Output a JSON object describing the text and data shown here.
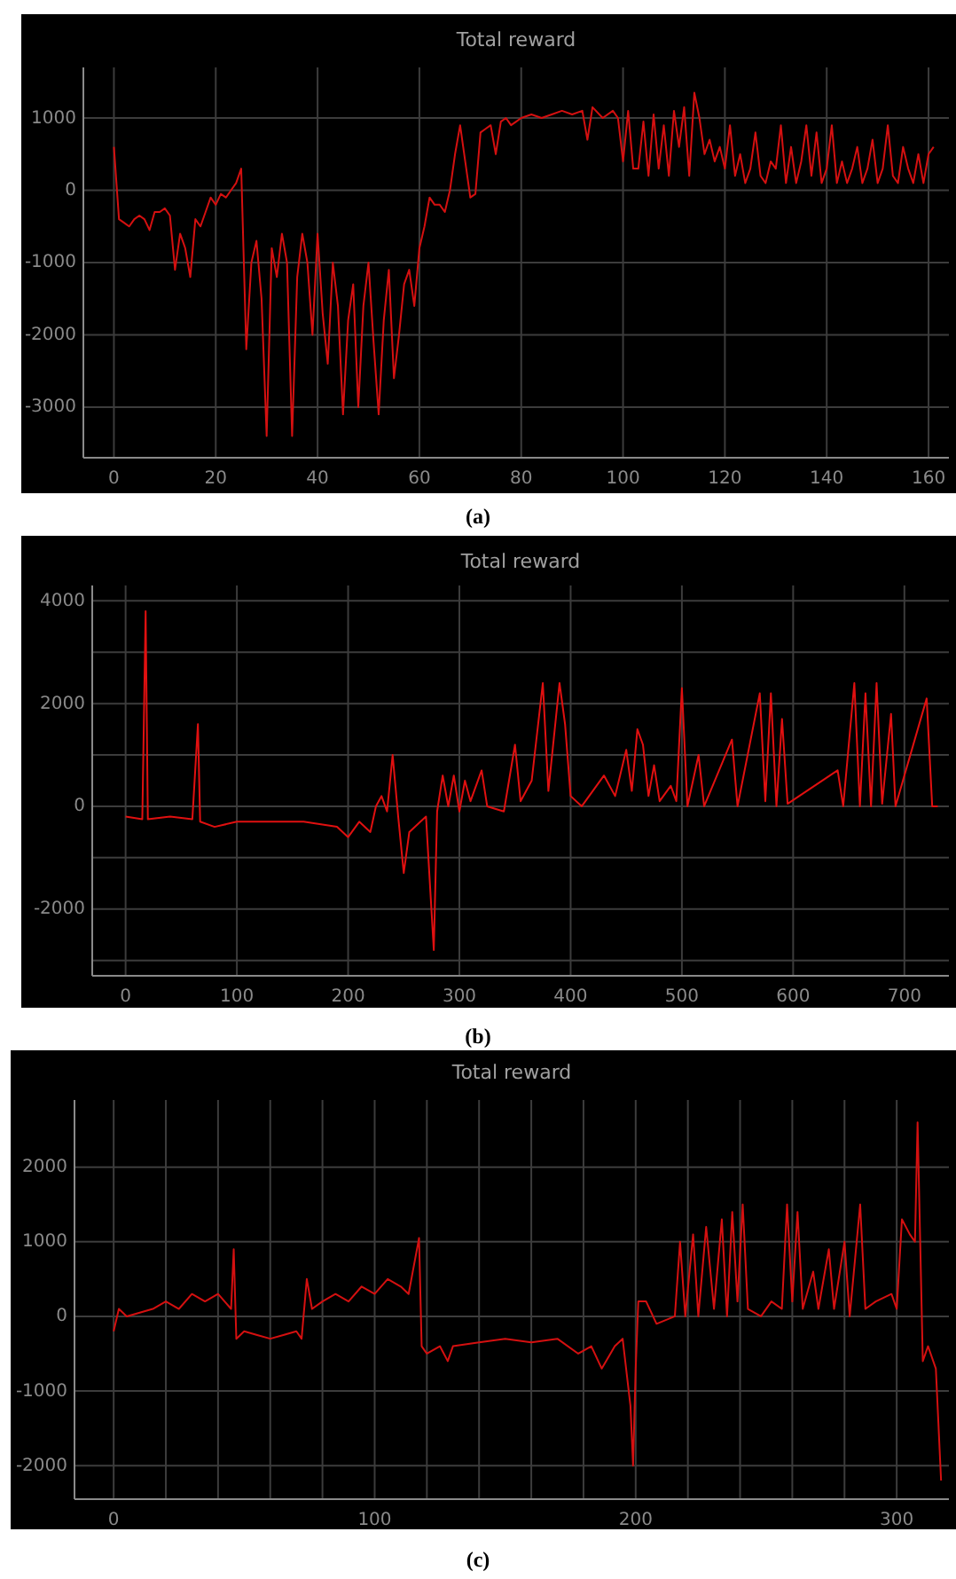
{
  "chart_data": [
    {
      "type": "line",
      "title": "Total reward",
      "annotations": [
        "(a)"
      ],
      "grid": true,
      "xlim": [
        -6,
        164
      ],
      "ylim": [
        -3700,
        1700
      ],
      "xticks": [
        0,
        20,
        40,
        60,
        80,
        100,
        120,
        140,
        160
      ],
      "yticks": [
        -3000,
        -2000,
        -1000,
        0,
        1000
      ],
      "series": [
        {
          "color": "#d41010",
          "x": [
            0,
            1,
            2,
            3,
            4,
            5,
            6,
            7,
            8,
            9,
            10,
            11,
            12,
            13,
            14,
            15,
            16,
            17,
            18,
            19,
            20,
            21,
            22,
            23,
            24,
            25,
            26,
            27,
            28,
            29,
            30,
            31,
            32,
            33,
            34,
            35,
            36,
            37,
            38,
            39,
            40,
            41,
            42,
            43,
            44,
            45,
            46,
            47,
            48,
            49,
            50,
            51,
            52,
            53,
            54,
            55,
            56,
            57,
            58,
            59,
            60,
            61,
            62,
            63,
            64,
            65,
            66,
            67,
            68,
            69,
            70,
            71,
            72,
            73,
            74,
            75,
            76,
            77,
            78,
            79,
            80,
            82,
            84,
            86,
            88,
            90,
            92,
            93,
            94,
            96,
            98,
            99,
            100,
            101,
            102,
            103,
            104,
            105,
            106,
            107,
            108,
            109,
            110,
            111,
            112,
            113,
            114,
            115,
            116,
            117,
            118,
            119,
            120,
            121,
            122,
            123,
            124,
            125,
            126,
            127,
            128,
            129,
            130,
            131,
            132,
            133,
            134,
            135,
            136,
            137,
            138,
            139,
            140,
            141,
            142,
            143,
            144,
            145,
            146,
            147,
            148,
            149,
            150,
            151,
            152,
            153,
            154,
            155,
            156,
            157,
            158,
            159,
            160,
            161
          ],
          "values": [
            600,
            -400,
            -450,
            -500,
            -400,
            -350,
            -400,
            -550,
            -300,
            -300,
            -250,
            -350,
            -1100,
            -600,
            -800,
            -1200,
            -400,
            -500,
            -300,
            -100,
            -200,
            -50,
            -100,
            0,
            100,
            300,
            -2200,
            -1000,
            -700,
            -1500,
            -3400,
            -800,
            -1200,
            -600,
            -1000,
            -3400,
            -1200,
            -600,
            -1000,
            -2000,
            -600,
            -1700,
            -2400,
            -1000,
            -1600,
            -3100,
            -1800,
            -1300,
            -3000,
            -1600,
            -1000,
            -2100,
            -3100,
            -1800,
            -1100,
            -2600,
            -2000,
            -1300,
            -1100,
            -1600,
            -800,
            -500,
            -100,
            -200,
            -200,
            -300,
            0,
            500,
            900,
            400,
            -100,
            -50,
            800,
            850,
            900,
            500,
            950,
            1000,
            900,
            950,
            1000,
            1050,
            1000,
            1050,
            1100,
            1050,
            1100,
            700,
            1150,
            1000,
            1100,
            1000,
            400,
            1100,
            300,
            300,
            950,
            200,
            1050,
            300,
            900,
            200,
            1100,
            600,
            1150,
            200,
            1350,
            1000,
            500,
            700,
            400,
            600,
            300,
            900,
            200,
            500,
            100,
            300,
            800,
            200,
            100,
            400,
            300,
            900,
            100,
            600,
            100,
            400,
            900,
            200,
            800,
            100,
            300,
            900,
            100,
            400,
            100,
            300,
            600,
            100,
            300,
            700,
            100,
            300,
            900,
            200,
            100,
            600,
            300,
            100,
            500,
            100,
            500,
            600
          ]
        }
      ]
    },
    {
      "type": "line",
      "title": "Total reward",
      "annotations": [
        "(b)"
      ],
      "grid": true,
      "xlim": [
        -30,
        740
      ],
      "ylim": [
        -3300,
        4300
      ],
      "xticks": [
        0,
        100,
        200,
        300,
        400,
        500,
        600,
        700
      ],
      "yticks": [
        {
          "value": -3000,
          "label": null
        },
        -2000,
        {
          "value": -1000,
          "label": null
        },
        0,
        {
          "value": 1000,
          "label": null
        },
        2000,
        {
          "value": 3000,
          "label": null
        },
        4000
      ],
      "series": [
        {
          "color": "#e01010",
          "x": [
            0,
            15,
            18,
            20,
            40,
            60,
            65,
            67,
            80,
            100,
            130,
            160,
            190,
            200,
            210,
            220,
            225,
            230,
            235,
            240,
            245,
            250,
            255,
            265,
            270,
            277,
            280,
            285,
            290,
            295,
            300,
            305,
            310,
            320,
            325,
            340,
            350,
            355,
            365,
            375,
            380,
            390,
            395,
            400,
            410,
            430,
            440,
            450,
            455,
            460,
            465,
            470,
            475,
            480,
            490,
            495,
            500,
            505,
            515,
            520,
            545,
            550,
            570,
            575,
            580,
            585,
            590,
            595,
            640,
            645,
            655,
            660,
            665,
            670,
            675,
            680,
            688,
            692,
            720,
            725,
            730
          ],
          "values": [
            -200,
            -250,
            3800,
            -250,
            -200,
            -250,
            1600,
            -300,
            -400,
            -300,
            -300,
            -300,
            -400,
            -600,
            -300,
            -500,
            0,
            200,
            -100,
            1000,
            -200,
            -1300,
            -500,
            -300,
            -200,
            -2800,
            -100,
            600,
            0,
            600,
            -100,
            500,
            100,
            700,
            0,
            -100,
            1200,
            100,
            500,
            2400,
            300,
            2400,
            1600,
            200,
            0,
            600,
            200,
            1100,
            300,
            1500,
            1200,
            200,
            800,
            100,
            400,
            100,
            2300,
            0,
            1000,
            0,
            1300,
            0,
            2200,
            100,
            2200,
            0,
            1700,
            50,
            700,
            0,
            2400,
            0,
            2200,
            0,
            2400,
            50,
            1800,
            0,
            2100,
            0,
            0
          ]
        }
      ]
    },
    {
      "type": "line",
      "title": "Total reward",
      "annotations": [
        "(c)"
      ],
      "grid": true,
      "xlim": [
        -15,
        320
      ],
      "ylim": [
        -2450,
        2900
      ],
      "xticks": [
        0,
        {
          "value": 20,
          "label": null
        },
        {
          "value": 40,
          "label": null
        },
        {
          "value": 60,
          "label": null
        },
        {
          "value": 80,
          "label": null
        },
        100,
        {
          "value": 120,
          "label": null
        },
        {
          "value": 140,
          "label": null
        },
        {
          "value": 160,
          "label": null
        },
        {
          "value": 180,
          "label": null
        },
        200,
        {
          "value": 220,
          "label": null
        },
        {
          "value": 240,
          "label": null
        },
        {
          "value": 260,
          "label": null
        },
        {
          "value": 280,
          "label": null
        },
        300
      ],
      "yticks": [
        -2000,
        -1000,
        0,
        1000,
        2000
      ],
      "series": [
        {
          "color": "#d41010",
          "x": [
            0,
            2,
            5,
            10,
            15,
            20,
            25,
            30,
            35,
            40,
            45,
            46,
            47,
            50,
            55,
            60,
            65,
            70,
            72,
            74,
            76,
            80,
            85,
            90,
            95,
            100,
            105,
            110,
            113,
            117,
            118,
            120,
            125,
            128,
            130,
            140,
            150,
            160,
            170,
            178,
            183,
            187,
            192,
            195,
            198,
            199,
            200,
            201,
            204,
            208,
            215,
            217,
            219,
            222,
            224,
            227,
            230,
            233,
            235,
            237,
            239,
            241,
            243,
            248,
            252,
            256,
            258,
            260,
            262,
            264,
            268,
            270,
            274,
            276,
            280,
            282,
            286,
            288,
            292,
            298,
            300,
            302,
            305,
            307,
            308,
            310,
            312,
            315,
            317
          ],
          "values": [
            -200,
            100,
            0,
            50,
            100,
            200,
            100,
            300,
            200,
            300,
            100,
            900,
            -300,
            -200,
            -250,
            -300,
            -250,
            -200,
            -300,
            500,
            100,
            200,
            300,
            200,
            400,
            300,
            500,
            400,
            300,
            1050,
            -400,
            -500,
            -400,
            -600,
            -400,
            -350,
            -300,
            -350,
            -300,
            -500,
            -400,
            -700,
            -400,
            -300,
            -1200,
            -2000,
            -700,
            200,
            200,
            -100,
            0,
            1000,
            0,
            1100,
            0,
            1200,
            100,
            1300,
            0,
            1400,
            200,
            1500,
            100,
            0,
            200,
            100,
            1500,
            200,
            1400,
            100,
            600,
            100,
            900,
            100,
            1000,
            0,
            1500,
            100,
            200,
            300,
            100,
            1300,
            1100,
            1000,
            2600,
            -600,
            -400,
            -700,
            -2200
          ]
        }
      ]
    }
  ]
}
